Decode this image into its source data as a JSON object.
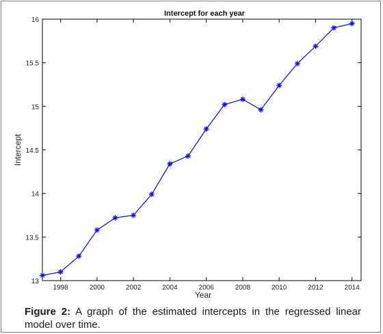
{
  "chart_data": {
    "type": "line",
    "title": "Intercept for each year",
    "xlabel": "Year",
    "ylabel": "Intercept",
    "xlim": [
      1997,
      2014.5
    ],
    "ylim": [
      13,
      16
    ],
    "x_ticks": [
      1998,
      2000,
      2002,
      2004,
      2006,
      2008,
      2010,
      2012,
      2014
    ],
    "y_ticks": [
      13,
      13.5,
      14,
      14.5,
      15,
      15.5,
      16
    ],
    "x_tick_labels": [
      "1998",
      "2000",
      "2002",
      "2004",
      "2006",
      "2008",
      "2010",
      "2012",
      "2014"
    ],
    "y_tick_labels": [
      "13",
      "13.5",
      "14",
      "14.5",
      "15",
      "15.5",
      "16"
    ],
    "grid": false,
    "series": [
      {
        "color": "#0000ff",
        "marker": "asterisk",
        "x": [
          1997,
          1998,
          1999,
          2000,
          2001,
          2002,
          2003,
          2004,
          2005,
          2006,
          2007,
          2008,
          2009,
          2010,
          2011,
          2012,
          2013,
          2014
        ],
        "y": [
          13.06,
          13.1,
          13.28,
          13.58,
          13.72,
          13.75,
          13.99,
          14.34,
          14.43,
          14.74,
          15.02,
          15.08,
          14.96,
          15.24,
          15.49,
          15.69,
          15.9,
          15.95
        ]
      }
    ]
  },
  "caption": {
    "label": "Figure 2:",
    "text": " A graph of the estimated intercepts in the regressed linear model over time."
  }
}
